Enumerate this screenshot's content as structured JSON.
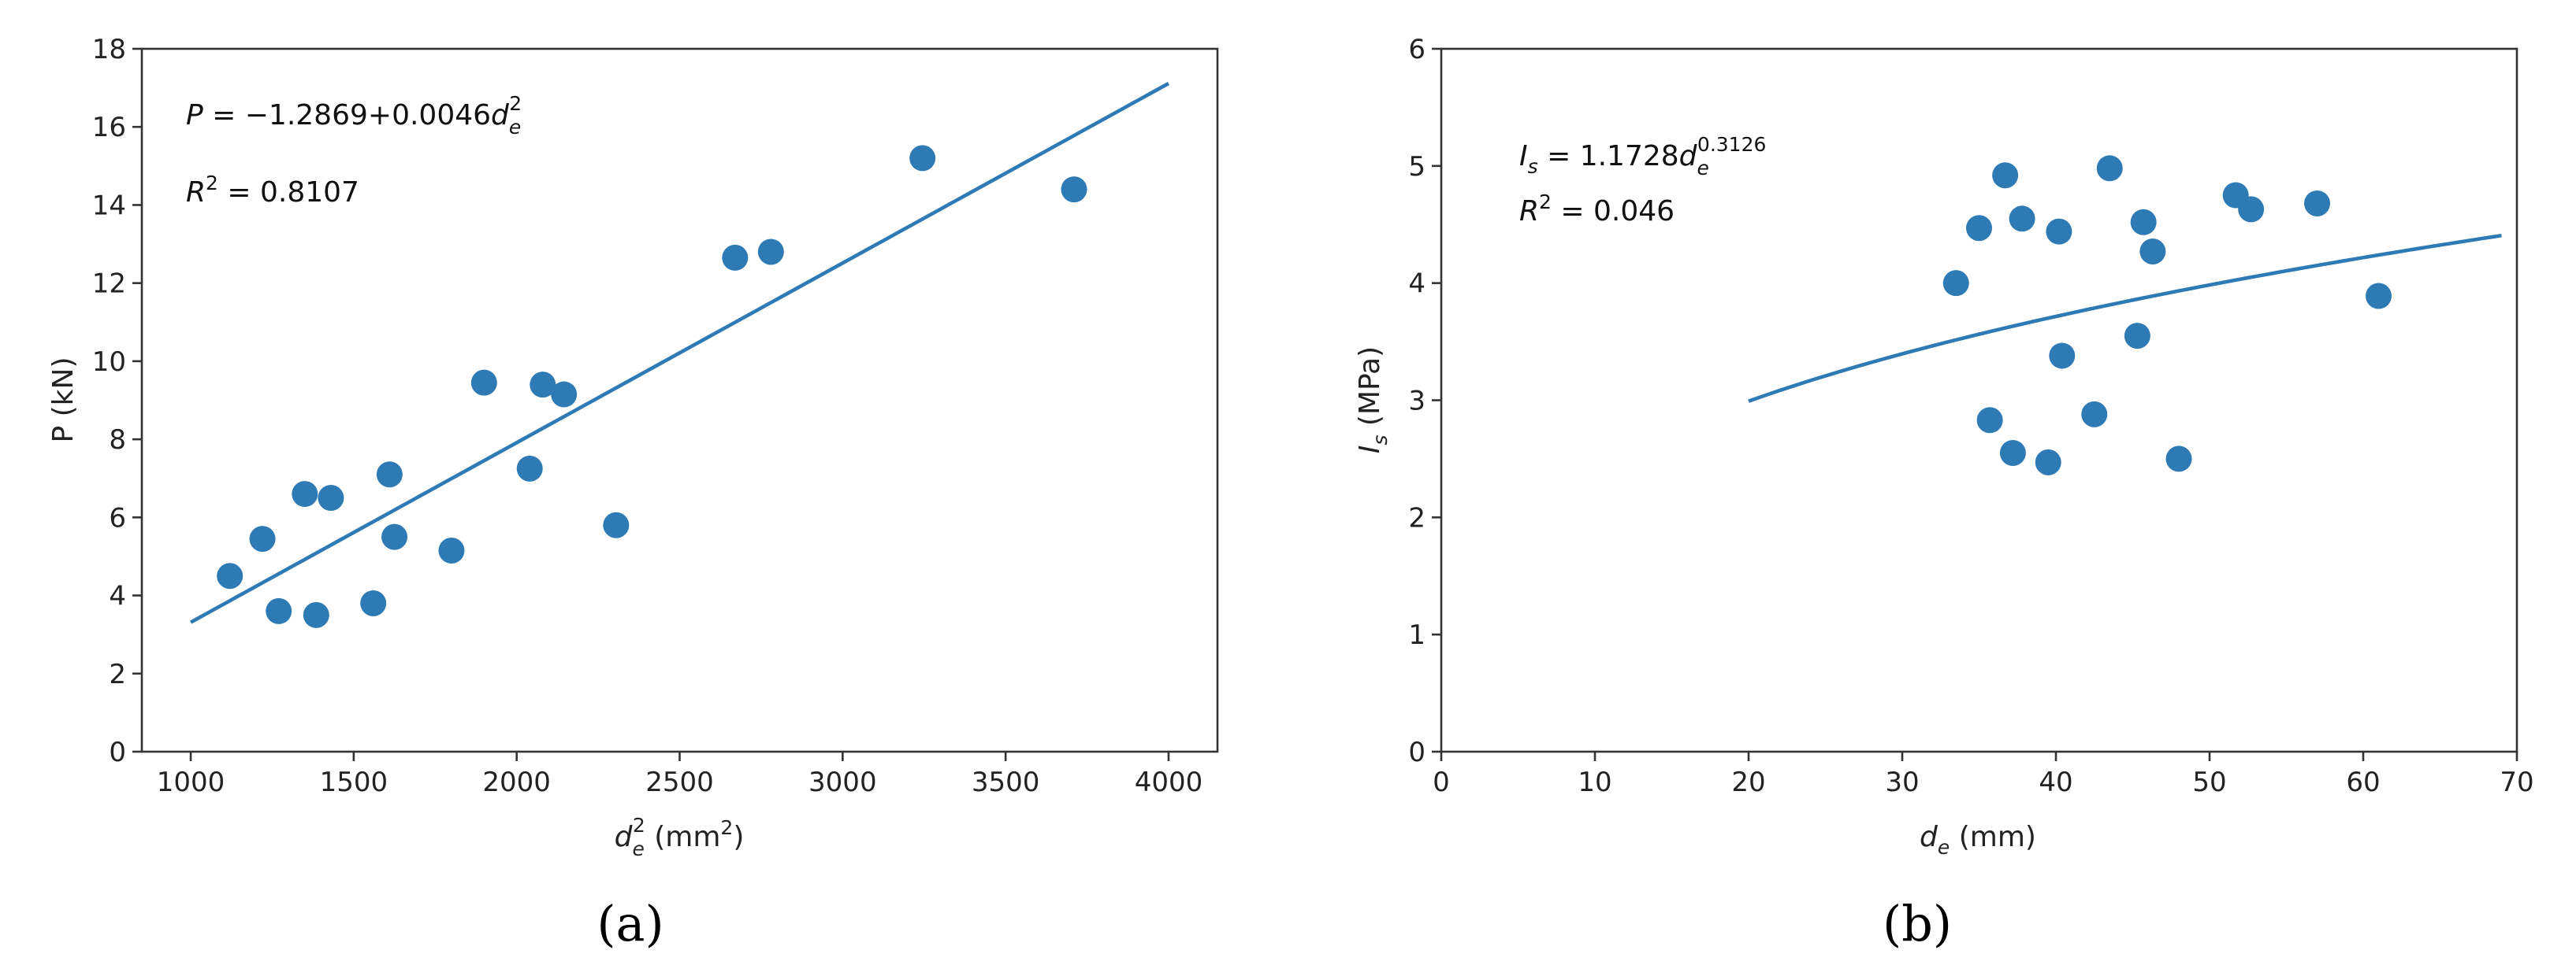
{
  "colors": {
    "series": "#2e7ab5",
    "axes": "#333333"
  },
  "chart_data": [
    {
      "type": "scatter",
      "panel_label": "(a)",
      "xlabel": {
        "base": "d",
        "sub": "e",
        "sup": "2",
        "unit": " (mm",
        "unit_sup": "2",
        "unit_end": ")"
      },
      "ylabel": "P (kN)",
      "xlim": [
        850,
        4150
      ],
      "ylim": [
        0,
        18
      ],
      "xticks": [
        1000,
        1500,
        2000,
        2500,
        3000,
        3500,
        4000
      ],
      "yticks": [
        0,
        2,
        4,
        6,
        8,
        10,
        12,
        14,
        16,
        18
      ],
      "grid": false,
      "equation": {
        "lhs": "P",
        "rhs": " = −1.2869+0.0046",
        "var": "d",
        "sub": "e",
        "sup": "2"
      },
      "r2": {
        "base": "R",
        "sup": "2",
        "rhs": " = 0.8107"
      },
      "fit": {
        "model": "linear",
        "intercept": -1.2869,
        "slope": 0.0046,
        "x_range": [
          1000,
          4000
        ]
      },
      "points": [
        [
          1120,
          4.5
        ],
        [
          1220,
          5.45
        ],
        [
          1270,
          3.6
        ],
        [
          1350,
          6.6
        ],
        [
          1385,
          3.5
        ],
        [
          1430,
          6.5
        ],
        [
          1560,
          3.8
        ],
        [
          1610,
          7.1
        ],
        [
          1625,
          5.5
        ],
        [
          1800,
          5.15
        ],
        [
          1900,
          9.45
        ],
        [
          2040,
          7.25
        ],
        [
          2080,
          9.4
        ],
        [
          2145,
          9.15
        ],
        [
          2305,
          5.8
        ],
        [
          2670,
          12.65
        ],
        [
          2780,
          12.8
        ],
        [
          3245,
          15.2
        ],
        [
          3710,
          14.4
        ]
      ]
    },
    {
      "type": "scatter",
      "panel_label": "(b)",
      "xlabel": {
        "base": "d",
        "sub": "e",
        "unit": " (mm)"
      },
      "ylabel": {
        "base": "I",
        "sub": "s",
        "unit": " (MPa)"
      },
      "xlim": [
        0,
        70
      ],
      "ylim": [
        0,
        6
      ],
      "xticks": [
        0,
        10,
        20,
        30,
        40,
        50,
        60,
        70
      ],
      "yticks": [
        0,
        1,
        2,
        3,
        4,
        5,
        6
      ],
      "grid": false,
      "equation": {
        "lhs": "I",
        "lhs_sub": "s",
        "rhs": " = 1.1728",
        "var": "d",
        "sub": "e",
        "sup": "0.3126"
      },
      "r2": {
        "base": "R",
        "sup": "2",
        "rhs": " = 0.046"
      },
      "fit": {
        "model": "power",
        "a": 1.1728,
        "b": 0.3126,
        "x_range": [
          20,
          69
        ]
      },
      "points": [
        [
          33.5,
          4.0
        ],
        [
          35.0,
          4.47
        ],
        [
          35.7,
          2.83
        ],
        [
          36.7,
          4.92
        ],
        [
          37.2,
          2.55
        ],
        [
          37.8,
          4.55
        ],
        [
          39.5,
          2.47
        ],
        [
          40.2,
          4.44
        ],
        [
          40.4,
          3.38
        ],
        [
          42.5,
          2.88
        ],
        [
          43.5,
          4.98
        ],
        [
          45.3,
          3.55
        ],
        [
          45.7,
          4.52
        ],
        [
          46.3,
          4.27
        ],
        [
          48.0,
          2.5
        ],
        [
          51.7,
          4.75
        ],
        [
          52.7,
          4.63
        ],
        [
          57.0,
          4.68
        ],
        [
          61.0,
          3.89
        ]
      ]
    }
  ]
}
